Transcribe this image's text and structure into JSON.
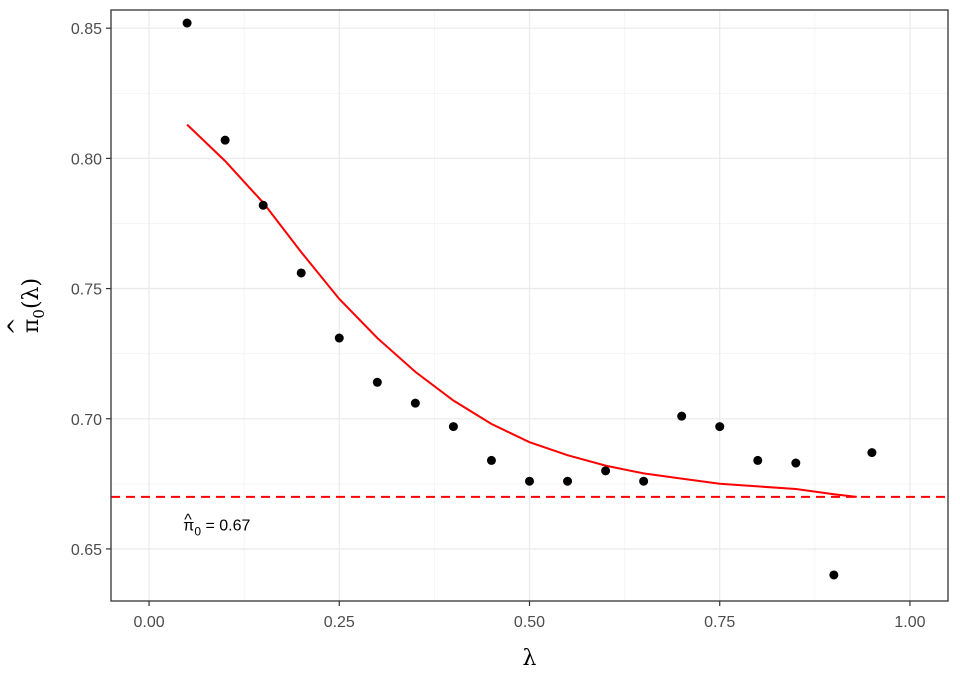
{
  "chart_data": {
    "type": "scatter",
    "title": "",
    "xlabel": "λ",
    "ylabel": "π̂0(λ)",
    "xlim": [
      -0.05,
      1.05
    ],
    "ylim": [
      0.63,
      0.857
    ],
    "x_ticks": [
      0.0,
      0.25,
      0.5,
      0.75,
      1.0
    ],
    "x_tick_labels": [
      "0.00",
      "0.25",
      "0.50",
      "0.75",
      "1.00"
    ],
    "y_ticks": [
      0.65,
      0.7,
      0.75,
      0.8,
      0.85
    ],
    "y_tick_labels": [
      "0.65",
      "0.70",
      "0.75",
      "0.80",
      "0.85"
    ],
    "grid": true,
    "legend": "none",
    "series": [
      {
        "kind": "points",
        "color": "#000000",
        "x": [
          0.05,
          0.1,
          0.15,
          0.2,
          0.25,
          0.3,
          0.35,
          0.4,
          0.45,
          0.5,
          0.55,
          0.6,
          0.65,
          0.7,
          0.75,
          0.8,
          0.85,
          0.9,
          0.95
        ],
        "y": [
          0.852,
          0.807,
          0.782,
          0.756,
          0.731,
          0.714,
          0.706,
          0.697,
          0.684,
          0.676,
          0.676,
          0.68,
          0.676,
          0.701,
          0.697,
          0.684,
          0.683,
          0.64,
          0.687
        ]
      },
      {
        "kind": "smooth-line",
        "color": "#ff0000",
        "x": [
          0.05,
          0.1,
          0.15,
          0.2,
          0.25,
          0.3,
          0.35,
          0.4,
          0.45,
          0.5,
          0.55,
          0.6,
          0.65,
          0.7,
          0.75,
          0.8,
          0.85,
          0.9,
          0.93
        ],
        "y": [
          0.813,
          0.799,
          0.783,
          0.764,
          0.746,
          0.731,
          0.718,
          0.707,
          0.698,
          0.691,
          0.686,
          0.682,
          0.679,
          0.677,
          0.675,
          0.674,
          0.673,
          0.671,
          0.67
        ]
      }
    ],
    "hline": {
      "y": 0.67,
      "color": "#ff0000",
      "style": "dashed"
    },
    "annotation": {
      "text": "π̂0 = 0.67",
      "x": 0.045,
      "y": 0.657
    }
  }
}
